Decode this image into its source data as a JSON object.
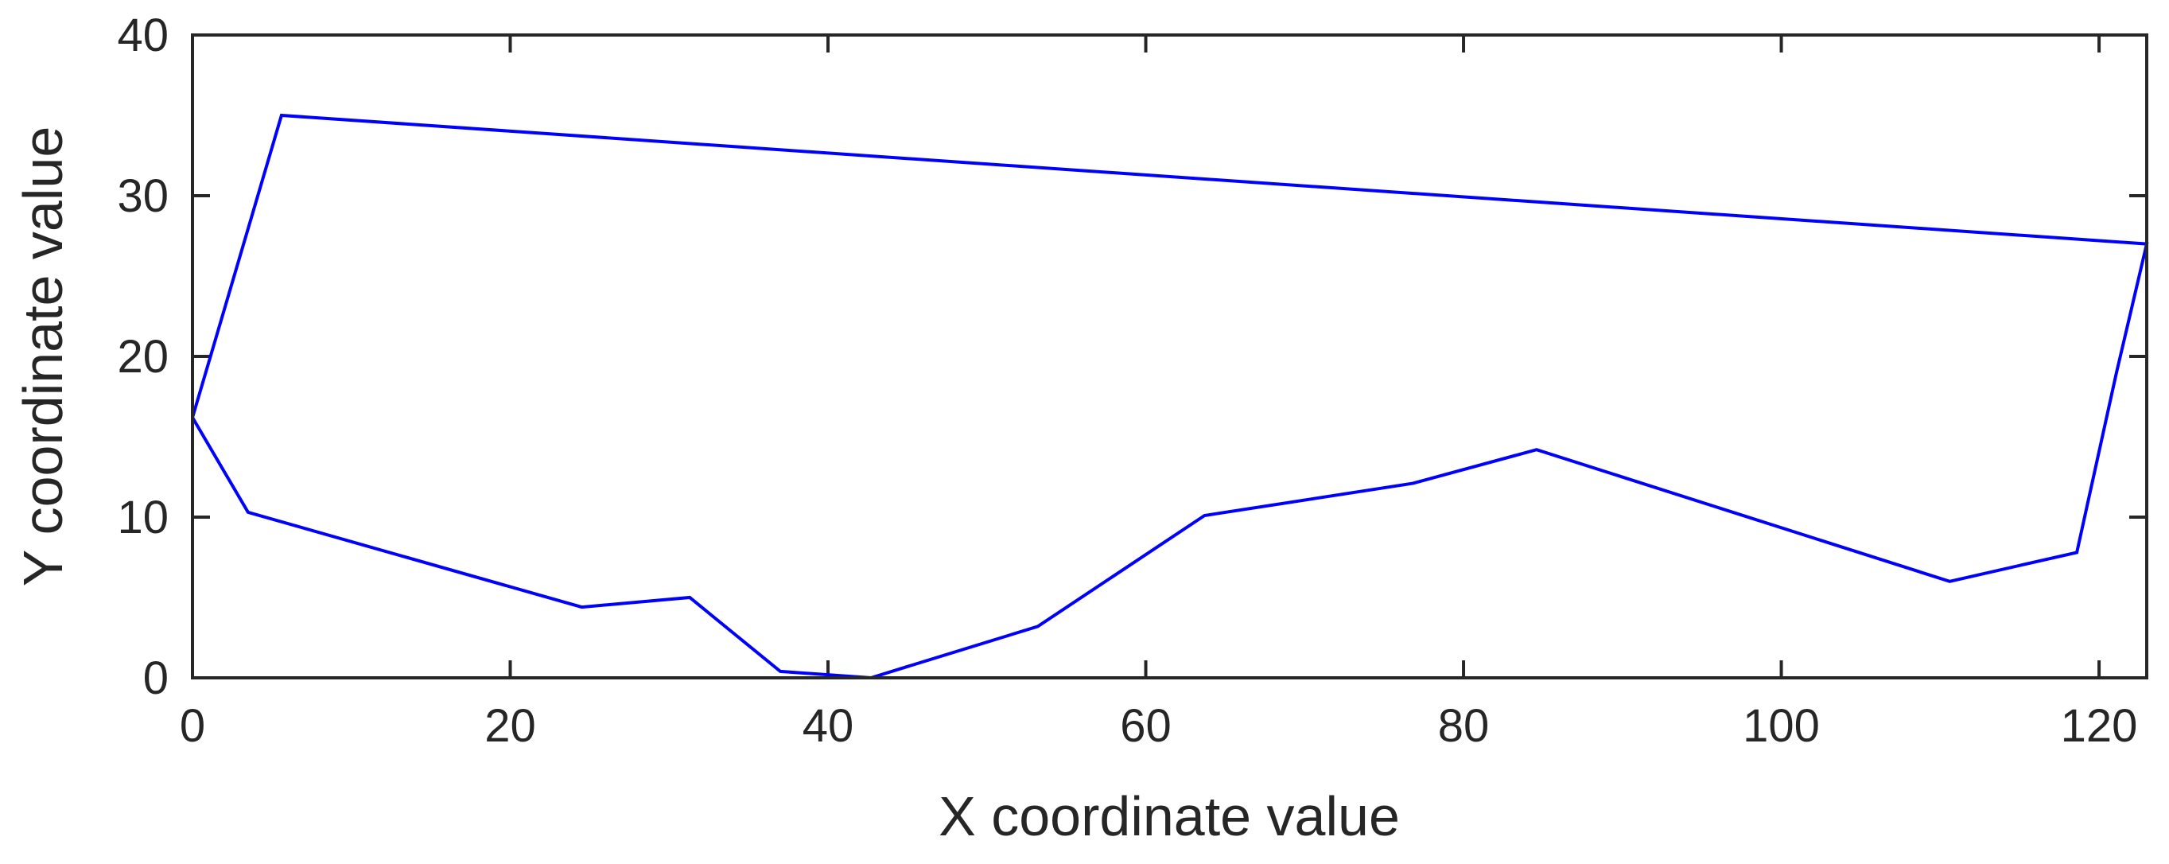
{
  "chart_data": {
    "type": "line",
    "title": "",
    "xlabel": "X coordinate value",
    "ylabel": "Y coordinate value",
    "xlim": [
      0,
      123
    ],
    "ylim": [
      0,
      40
    ],
    "xticks": [
      0,
      20,
      40,
      60,
      80,
      100,
      120
    ],
    "yticks": [
      0,
      10,
      20,
      30,
      40
    ],
    "grid": false,
    "legend": "none",
    "series": [
      {
        "color": "#0000ff",
        "x": [
          0,
          5.6,
          123,
          121.1,
          118.6,
          110.6,
          84.6,
          76.8,
          63.7,
          53.2,
          42.7,
          37.0,
          31.3,
          24.5,
          3.5,
          0
        ],
        "y": [
          16.2,
          35.0,
          27.0,
          19.0,
          7.8,
          6.0,
          14.2,
          12.1,
          10.1,
          3.2,
          0.0,
          0.4,
          5.0,
          4.4,
          10.3,
          16.2
        ]
      }
    ]
  }
}
